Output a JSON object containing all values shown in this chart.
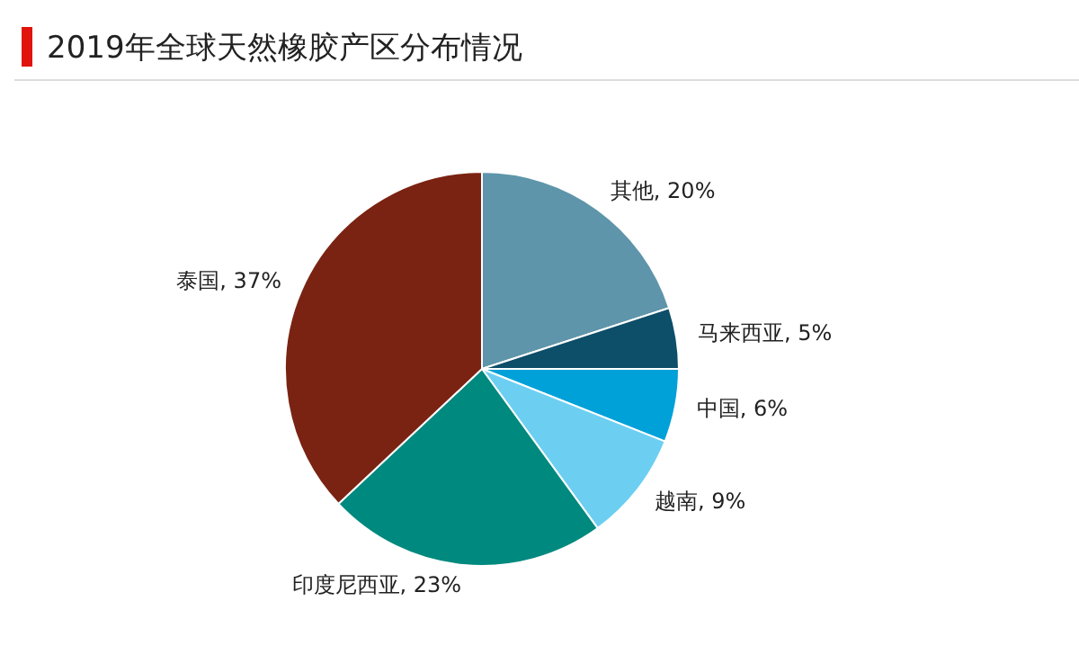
{
  "chart_data": {
    "type": "pie",
    "title": "2019年全球天然橡胶产区分布情况",
    "categories": [
      "其他",
      "马来西亚",
      "中国",
      "越南",
      "印度尼西亚",
      "泰国"
    ],
    "values": [
      20,
      5,
      6,
      9,
      23,
      37
    ],
    "value_labels": [
      "20%",
      "5%",
      "6%",
      "9%",
      "23%",
      "37%"
    ],
    "colors": [
      "#5e95aa",
      "#0d4e69",
      "#00a1d9",
      "#6ccff2",
      "#00897e",
      "#7a2312"
    ],
    "legend": false
  }
}
